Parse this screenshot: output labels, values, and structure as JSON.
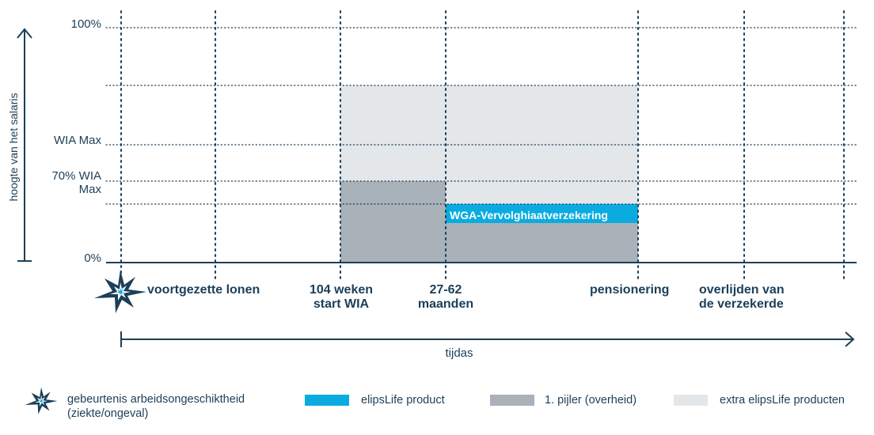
{
  "y_axis": {
    "title": "hoogte van het salaris",
    "ticks": [
      {
        "label": "100%"
      },
      {
        "label": "WIA Max"
      },
      {
        "label": "70% WIA\nMax"
      },
      {
        "label": "0%"
      }
    ]
  },
  "x_axis": {
    "title": "tijdas",
    "events": [
      {
        "label": "voortgezette lonen"
      },
      {
        "label": "104 weken\nstart WIA"
      },
      {
        "label": "27-62\nmaanden"
      },
      {
        "label": "pensionering"
      },
      {
        "label": "overlijden van\nde verzekerde"
      }
    ]
  },
  "blocks": {
    "wga_label": "WGA-Vervolghiaatverzekering"
  },
  "legend": {
    "event": "gebeurtenis arbeidsongeschiktheid\n(ziekte/ongeval)",
    "product": "elipsLife product",
    "pillar": "1. pijler (overheid)",
    "extra": "extra elipsLife producten"
  },
  "colors": {
    "navy": "#1c3f58",
    "cyan": "#0aace0",
    "gray_dark": "#a9b1b9",
    "gray_light": "#e4e7ea"
  }
}
